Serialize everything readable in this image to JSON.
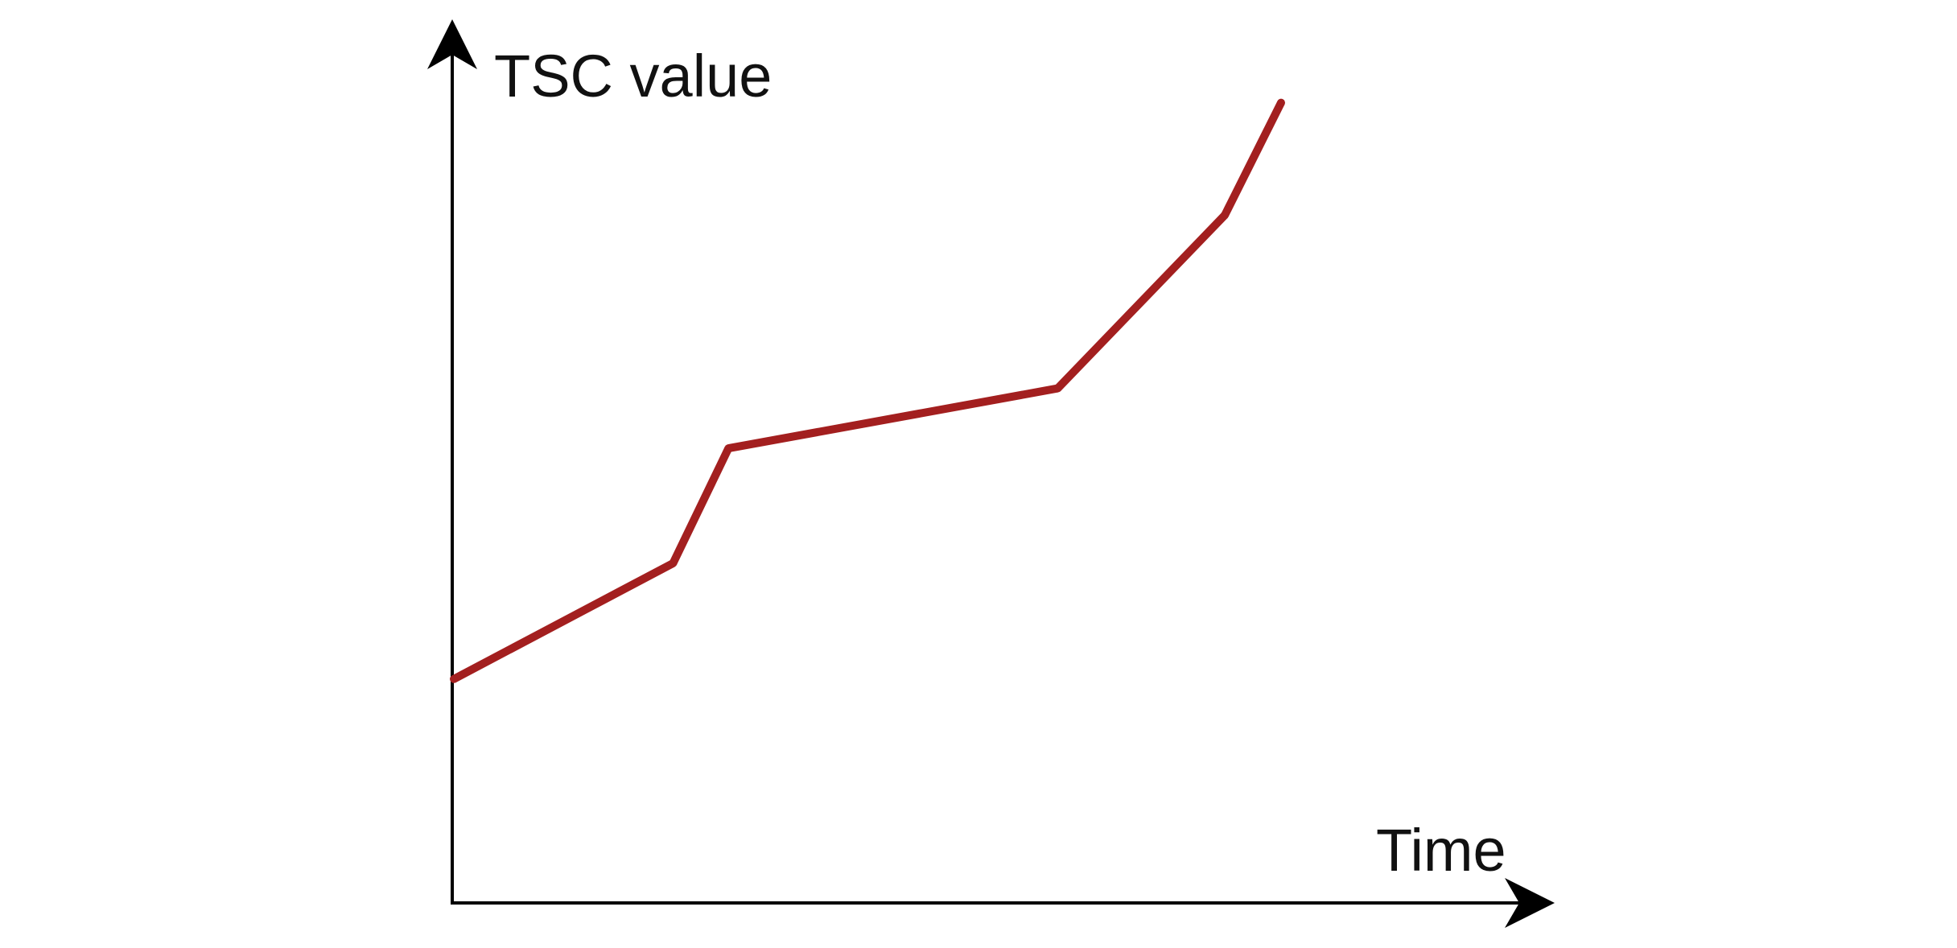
{
  "chart_data": {
    "type": "line",
    "ylabel": "TSC value",
    "xlabel": "Time",
    "grid": false,
    "xlim": [
      0,
      100
    ],
    "ylim": [
      0,
      100
    ],
    "series": [
      {
        "x": [
          0,
          26.5,
          33.2,
          73,
          93.2,
          100
        ],
        "y": [
          26.5,
          40.2,
          53.8,
          60.9,
          81.4,
          94.7
        ],
        "color": "#A31F1F"
      }
    ]
  }
}
